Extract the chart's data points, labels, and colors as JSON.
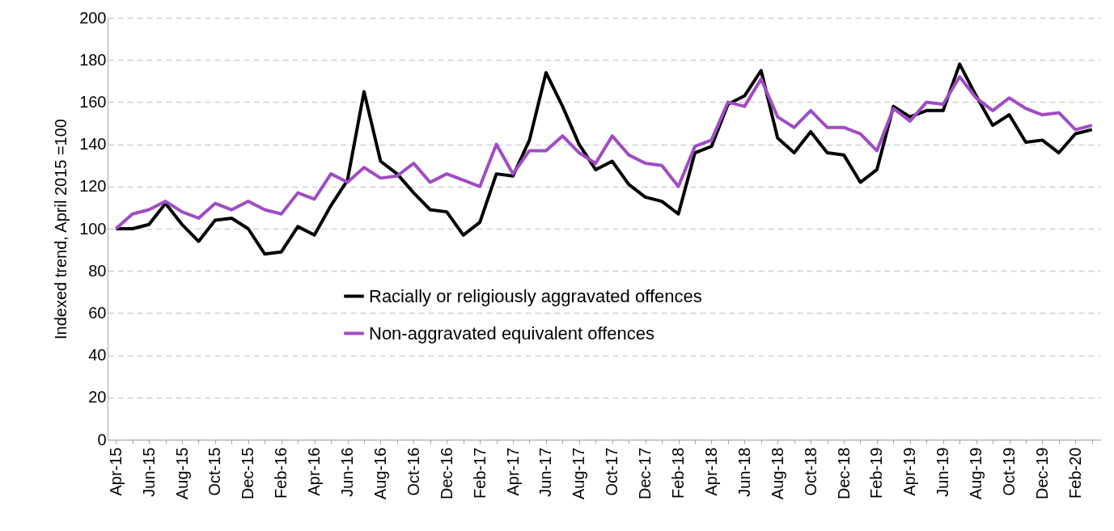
{
  "chart_data": {
    "type": "line",
    "ylabel": "Indexed trend, April 2015 =100",
    "categories": [
      "Apr-15",
      null,
      "Jun-15",
      null,
      "Aug-15",
      null,
      "Oct-15",
      null,
      "Dec-15",
      null,
      "Feb-16",
      null,
      "Apr-16",
      null,
      "Jun-16",
      null,
      "Aug-16",
      null,
      "Oct-16",
      null,
      "Dec-16",
      null,
      "Feb-17",
      null,
      "Apr-17",
      null,
      "Jun-17",
      null,
      "Aug-17",
      null,
      "Oct-17",
      null,
      "Dec-17",
      null,
      "Feb-18",
      null,
      "Apr-18",
      null,
      "Jun-18",
      null,
      "Aug-18",
      null,
      "Oct-18",
      null,
      "Dec-18",
      null,
      "Feb-19",
      null,
      "Apr-19",
      null,
      "Jun-19",
      null,
      "Aug-19",
      null,
      "Oct-19",
      null,
      "Dec-19",
      null,
      "Feb-20",
      null
    ],
    "series": [
      {
        "name": "Racially or religiously aggravated offences",
        "color": "#000000",
        "values": [
          100,
          100,
          102,
          112,
          102,
          94,
          104,
          105,
          100,
          88,
          89,
          101,
          97,
          111,
          123,
          165,
          132,
          126,
          117,
          109,
          108,
          97,
          103,
          126,
          125,
          142,
          174,
          158,
          140,
          128,
          132,
          121,
          115,
          113,
          107,
          136,
          139,
          159,
          163,
          175,
          143,
          136,
          146,
          136,
          135,
          122,
          128,
          158,
          153,
          156,
          156,
          178,
          163,
          149,
          154,
          141,
          142,
          136,
          145,
          147
        ]
      },
      {
        "name": "Non-aggravated equivalent offences",
        "color": "#a04cc4",
        "values": [
          100,
          107,
          109,
          113,
          108,
          105,
          112,
          109,
          113,
          109,
          107,
          117,
          114,
          126,
          122,
          129,
          124,
          125,
          131,
          122,
          126,
          123,
          120,
          140,
          126,
          137,
          137,
          144,
          136,
          131,
          144,
          135,
          131,
          130,
          120,
          139,
          142,
          160,
          158,
          171,
          153,
          148,
          156,
          148,
          148,
          145,
          137,
          157,
          151,
          160,
          159,
          172,
          162,
          156,
          162,
          157,
          154,
          155,
          147,
          149
        ]
      }
    ],
    "ylim": [
      0,
      200
    ],
    "yticks": [
      0,
      20,
      40,
      60,
      80,
      100,
      120,
      140,
      160,
      180,
      200
    ],
    "grid": "y",
    "legend": "left",
    "marker": "none",
    "line_style": "solid"
  }
}
